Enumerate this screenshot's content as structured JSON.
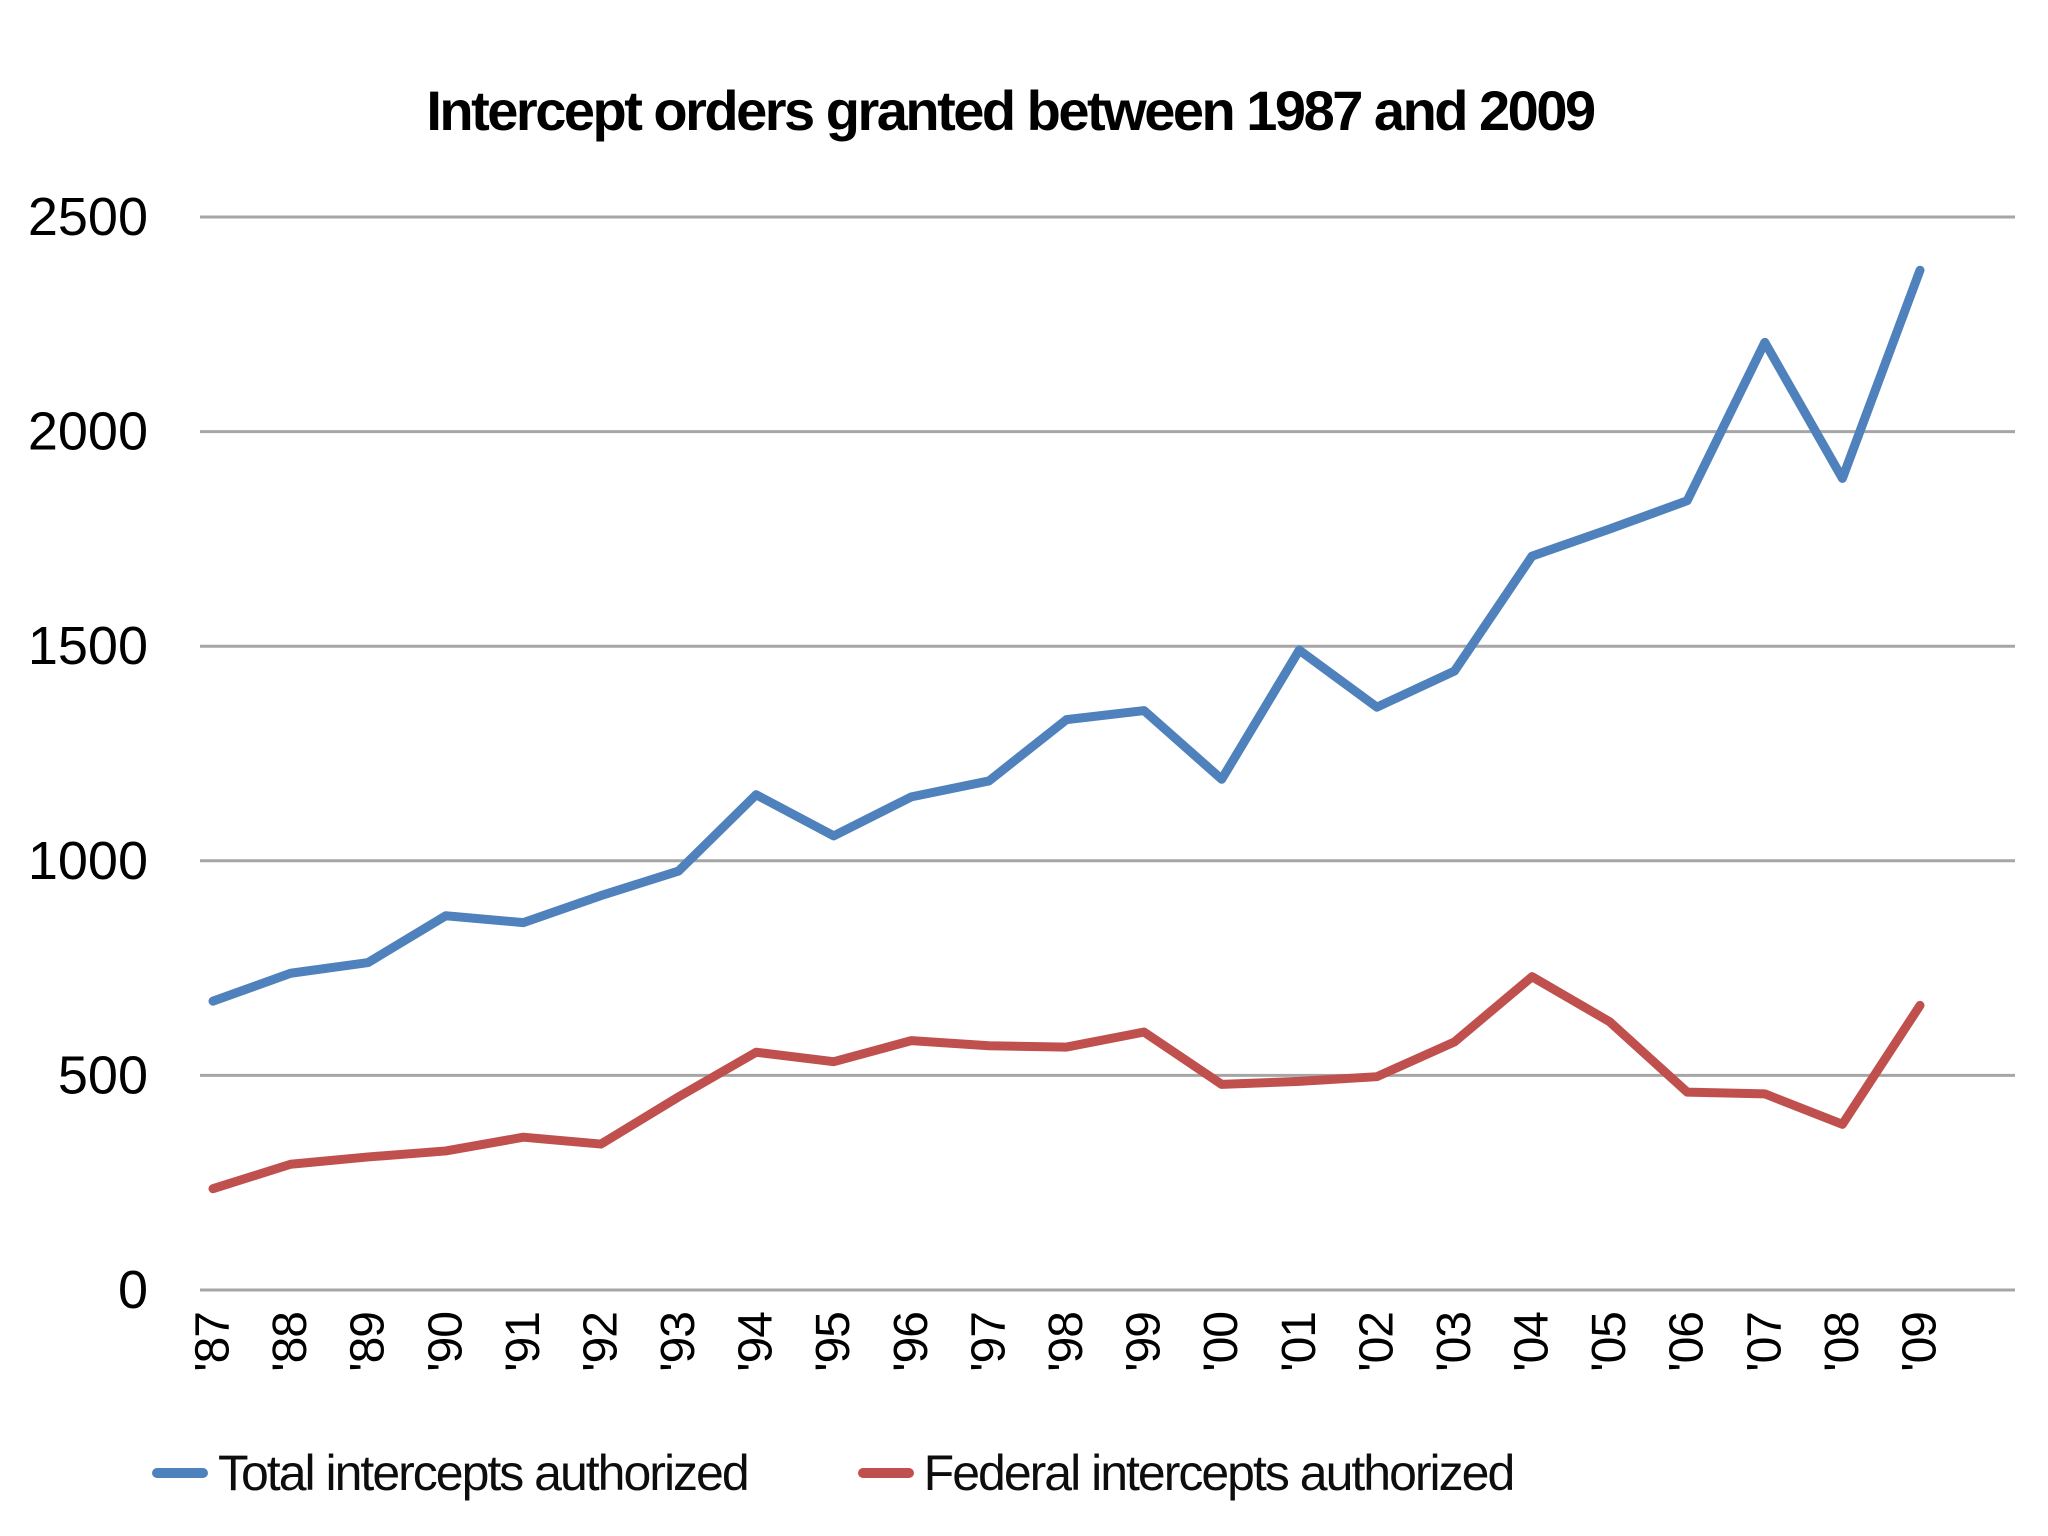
{
  "chart_data": {
    "type": "line",
    "title": "Intercept orders granted between 1987 and 2009",
    "categories": [
      "'87",
      "'88",
      "'89",
      "'90",
      "'91",
      "'92",
      "'93",
      "'94",
      "'95",
      "'96",
      "'97",
      "'98",
      "'99",
      "'00",
      "'01",
      "'02",
      "'03",
      "'04",
      "'05",
      "'06",
      "'07",
      "'08",
      "'09"
    ],
    "series": [
      {
        "name": "Total intercepts authorized",
        "color": "#4f81bd",
        "values": [
          673,
          738,
          763,
          872,
          856,
          919,
          976,
          1154,
          1058,
          1149,
          1186,
          1329,
          1350,
          1190,
          1491,
          1358,
          1442,
          1710,
          1773,
          1839,
          2208,
          1891,
          2376
        ]
      },
      {
        "name": "Federal intercepts authorized",
        "color": "#c0504d",
        "values": [
          236,
          293,
          310,
          324,
          356,
          340,
          450,
          554,
          532,
          581,
          569,
          566,
          601,
          479,
          486,
          497,
          578,
          730,
          625,
          461,
          457,
          386,
          663
        ]
      }
    ],
    "xlabel": "",
    "ylabel": "",
    "ylim": [
      0,
      2500
    ],
    "yticks": [
      0,
      500,
      1000,
      1500,
      2000,
      2500
    ],
    "grid": "horizontal-only",
    "gridline_color": "#a6a6a6",
    "legend_position": "bottom",
    "background_color": "#ffffff"
  }
}
